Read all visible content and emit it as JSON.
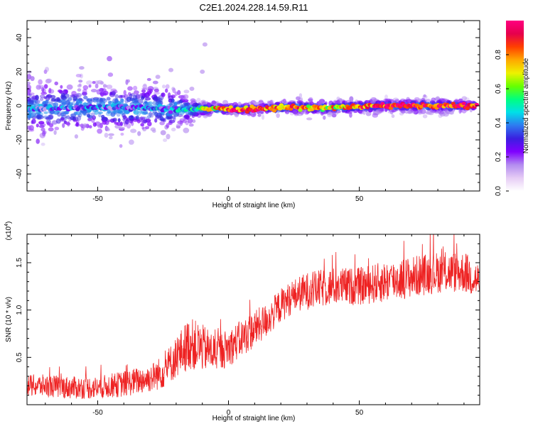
{
  "title": "C2E1.2024.228.14.59.R11",
  "colors": {
    "snr_line": "#ee2222",
    "axis": "#000000",
    "colormap": [
      "#ffffff",
      "#e6ccf5",
      "#b38cf0",
      "#8000ff",
      "#3a1fe0",
      "#2e7bf0",
      "#00e0e8",
      "#00ff80",
      "#66ff00",
      "#eef200",
      "#ffa800",
      "#ff4000",
      "#e6004c",
      "#ff0080"
    ]
  },
  "chart_data": [
    {
      "type": "heatmap",
      "xlabel": "Height of straight line (km)",
      "ylabel": "Frequency (Hz)",
      "xlim": [
        -77,
        96
      ],
      "ylim": [
        -50,
        50
      ],
      "xticks": [
        -50,
        0,
        50
      ],
      "yticks": [
        -40,
        -20,
        0,
        20,
        40
      ],
      "colorbar": {
        "label": "Normalized spectral amplitude",
        "range": [
          0.0,
          1.0
        ],
        "ticks": [
          "0.0",
          "0.2",
          "0.4",
          "0.6",
          "0.8"
        ]
      },
      "ridge": {
        "note_free": true,
        "x": [
          -77,
          -60,
          -40,
          -20,
          -15,
          -10,
          0,
          10,
          20,
          40,
          60,
          80,
          94
        ],
        "center_hz": [
          -2,
          -1,
          -1,
          -2,
          -2,
          -2,
          -2,
          -2,
          -1,
          -1,
          0,
          0,
          0
        ],
        "spread_hz": [
          9,
          8,
          8,
          7,
          4,
          2,
          1.5,
          1.5,
          2,
          2,
          2,
          2,
          1.5
        ],
        "amplitude": [
          0.3,
          0.3,
          0.3,
          0.35,
          0.4,
          0.6,
          0.85,
          0.85,
          0.8,
          0.7,
          0.9,
          0.9,
          0.9
        ]
      },
      "outliers": [
        {
          "x": -9,
          "y": 36
        },
        {
          "x": -22,
          "y": 21
        },
        {
          "x": -27,
          "y": 17
        },
        {
          "x": -10,
          "y": 20
        },
        {
          "x": -14,
          "y": 10
        }
      ]
    },
    {
      "type": "line",
      "xlabel": "Height of straight line (km)",
      "ylabel": "SNR (10 * v/v)",
      "yunit": "(x10",
      "yunit_exp": "4",
      "xlim": [
        -77,
        96
      ],
      "ylim": [
        0,
        1.8
      ],
      "xticks": [
        -50,
        0,
        50
      ],
      "yticks": [
        "0.5",
        "1.0",
        "1.5"
      ],
      "series": [
        {
          "x": [
            -77,
            -70,
            -60,
            -50,
            -40,
            -30,
            -25,
            -20,
            -15,
            -10,
            -5,
            0,
            5,
            10,
            15,
            20,
            25,
            30,
            40,
            50,
            60,
            70,
            80,
            90,
            96
          ],
          "mean": [
            0.2,
            0.2,
            0.18,
            0.18,
            0.22,
            0.28,
            0.35,
            0.5,
            0.65,
            0.6,
            0.55,
            0.6,
            0.7,
            0.8,
            0.9,
            1.05,
            1.15,
            1.2,
            1.25,
            1.25,
            1.3,
            1.35,
            1.4,
            1.4,
            1.3
          ],
          "noise": [
            0.12,
            0.12,
            0.12,
            0.12,
            0.14,
            0.15,
            0.18,
            0.22,
            0.28,
            0.25,
            0.2,
            0.2,
            0.2,
            0.2,
            0.18,
            0.18,
            0.18,
            0.2,
            0.2,
            0.2,
            0.22,
            0.22,
            0.22,
            0.22,
            0.2
          ],
          "points": 1500
        }
      ]
    }
  ]
}
